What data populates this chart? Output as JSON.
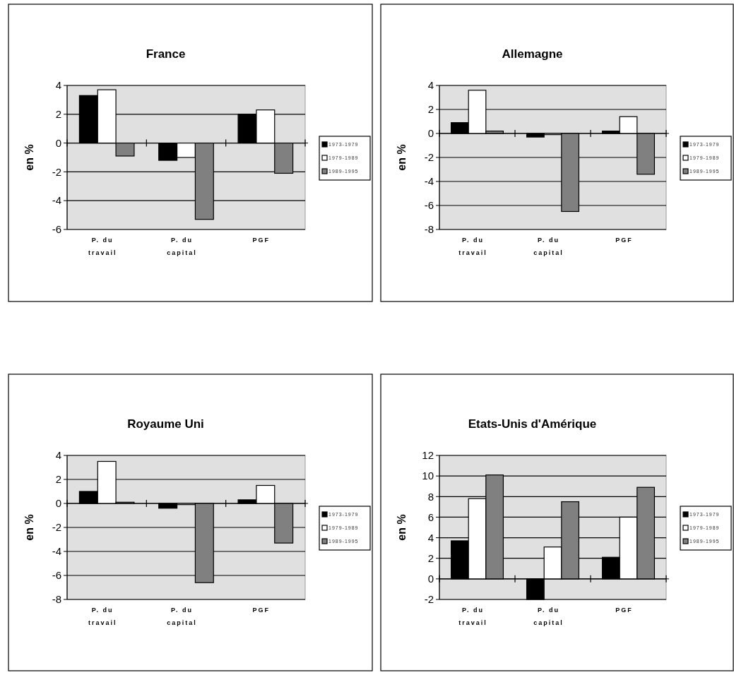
{
  "chart_data": [
    {
      "type": "bar",
      "title": "France",
      "ylabel": "en %",
      "categories": [
        "P. du travail",
        "P. du capital",
        "PGF"
      ],
      "ylim": [
        -6,
        4
      ],
      "yticks": [
        -6,
        -4,
        -2,
        0,
        2,
        4
      ],
      "grid": "y",
      "legend": "right",
      "series": [
        {
          "name": "1973-1979",
          "color": "#000000",
          "values": [
            3.3,
            -1.2,
            2.0
          ]
        },
        {
          "name": "1979-1989",
          "color": "#ffffff",
          "values": [
            3.7,
            -1.0,
            2.3
          ]
        },
        {
          "name": "1989-1995",
          "color": "#808080",
          "values": [
            -0.9,
            -5.3,
            -2.1
          ]
        }
      ]
    },
    {
      "type": "bar",
      "title": "Allemagne",
      "ylabel": "en %",
      "categories": [
        "P. du travail",
        "P. du capital",
        "PGF"
      ],
      "ylim": [
        -8,
        4
      ],
      "yticks": [
        -8,
        -6,
        -4,
        -2,
        0,
        2,
        4
      ],
      "grid": "y",
      "legend": "right",
      "series": [
        {
          "name": "1973-1979",
          "color": "#000000",
          "values": [
            0.9,
            -0.3,
            0.2
          ]
        },
        {
          "name": "1979-1989",
          "color": "#ffffff",
          "values": [
            3.6,
            -0.1,
            1.4
          ]
        },
        {
          "name": "1989-1995",
          "color": "#808080",
          "values": [
            0.2,
            -6.5,
            -3.4
          ]
        }
      ]
    },
    {
      "type": "bar",
      "title": "Royaume Uni",
      "ylabel": "en %",
      "categories": [
        "P. du travail",
        "P. du capital",
        "PGF"
      ],
      "ylim": [
        -8,
        4
      ],
      "yticks": [
        -8,
        -6,
        -4,
        -2,
        0,
        2,
        4
      ],
      "grid": "y",
      "legend": "right",
      "series": [
        {
          "name": "1973-1979",
          "color": "#000000",
          "values": [
            1.0,
            -0.4,
            0.3
          ]
        },
        {
          "name": "1979-1989",
          "color": "#ffffff",
          "values": [
            3.5,
            -0.1,
            1.5
          ]
        },
        {
          "name": "1989-1995",
          "color": "#808080",
          "values": [
            0.1,
            -6.6,
            -3.3
          ]
        }
      ]
    },
    {
      "type": "bar",
      "title": "Etats-Unis d'Amérique",
      "ylabel": "en %",
      "categories": [
        "P. du travail",
        "P. du capital",
        "PGF"
      ],
      "ylim": [
        -2,
        12
      ],
      "yticks": [
        -2,
        0,
        2,
        4,
        6,
        8,
        10,
        12
      ],
      "grid": "y",
      "legend": "right",
      "series": [
        {
          "name": "1973-1979",
          "color": "#000000",
          "values": [
            3.7,
            -2,
            2.1
          ]
        },
        {
          "name": "1979-1989",
          "color": "#ffffff",
          "values": [
            7.8,
            3.1,
            6.0
          ]
        },
        {
          "name": "1989-1995",
          "color": "#808080",
          "values": [
            10.1,
            7.5,
            8.9
          ]
        }
      ]
    }
  ]
}
